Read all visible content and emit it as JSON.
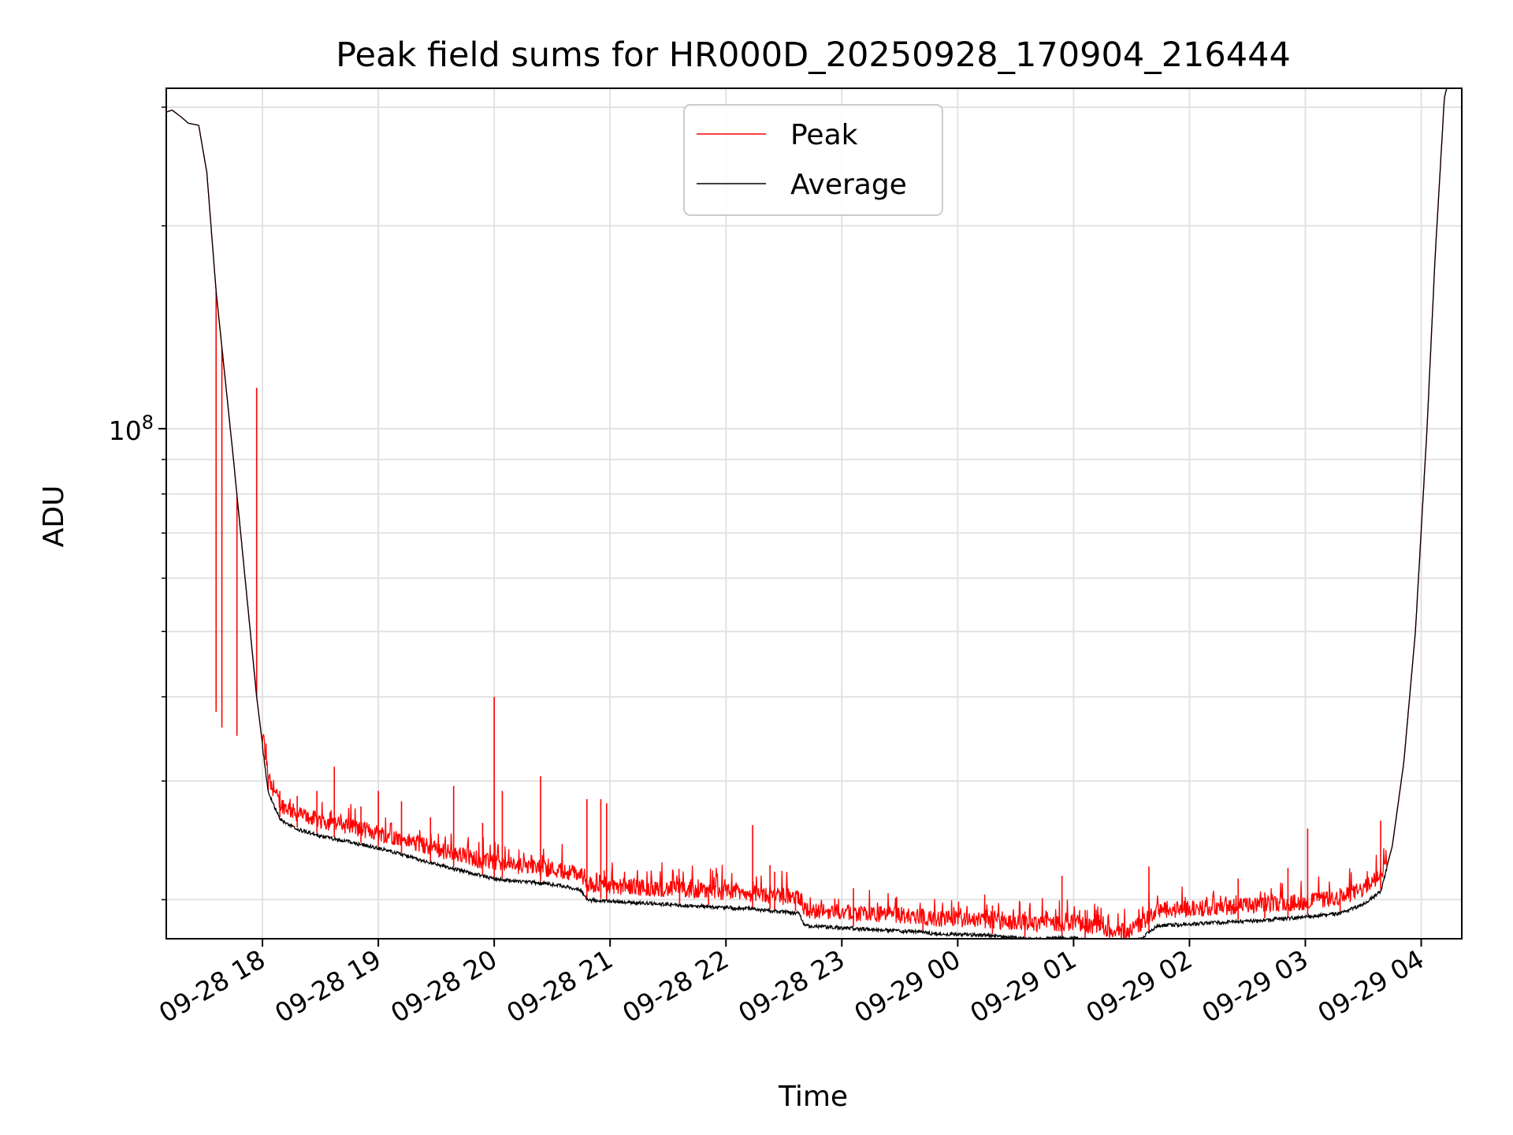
{
  "chart_data": {
    "type": "line",
    "title": "Peak field sums for HR000D_20250928_170904_216444",
    "xlabel": "Time",
    "ylabel": "ADU",
    "yscale": "log",
    "ylim": [
      17500000,
      320000000
    ],
    "xlim_hours_since_2025_09_28_17_00": [
      0.17,
      11.35
    ],
    "grid": true,
    "legend_position": "upper center",
    "x_ticks": [
      {
        "hour": 1,
        "label": "09-28 18"
      },
      {
        "hour": 2,
        "label": "09-28 19"
      },
      {
        "hour": 3,
        "label": "09-28 20"
      },
      {
        "hour": 4,
        "label": "09-28 21"
      },
      {
        "hour": 5,
        "label": "09-28 22"
      },
      {
        "hour": 6,
        "label": "09-28 23"
      },
      {
        "hour": 7,
        "label": "09-29 00"
      },
      {
        "hour": 8,
        "label": "09-29 01"
      },
      {
        "hour": 9,
        "label": "09-29 02"
      },
      {
        "hour": 10,
        "label": "09-29 03"
      },
      {
        "hour": 11,
        "label": "09-29 04"
      }
    ],
    "y_tick_major": {
      "value": 100000000,
      "label_base": "10",
      "label_exp": "8"
    },
    "series": [
      {
        "name": "Peak",
        "color": "#ff0000",
        "baseline_extra_pct": 6,
        "noise_pct": 8,
        "spikes": [
          [
            0.6,
            38000000
          ],
          [
            0.65,
            36000000
          ],
          [
            0.78,
            35000000
          ],
          [
            0.95,
            115000000
          ],
          [
            1.05,
            30000000
          ],
          [
            1.15,
            29000000
          ],
          [
            1.3,
            28500000
          ],
          [
            1.47,
            29000000
          ],
          [
            1.62,
            31500000
          ],
          [
            1.85,
            27500000
          ],
          [
            2.0,
            29000000
          ],
          [
            2.2,
            28000000
          ],
          [
            2.45,
            26500000
          ],
          [
            2.65,
            29500000
          ],
          [
            2.9,
            26000000
          ],
          [
            3.0,
            40000000
          ],
          [
            3.07,
            29000000
          ],
          [
            3.4,
            30500000
          ],
          [
            3.8,
            28200000
          ],
          [
            3.92,
            28200000
          ],
          [
            3.97,
            27800000
          ],
          [
            4.6,
            21500000
          ],
          [
            4.85,
            20500000
          ],
          [
            5.23,
            25800000
          ],
          [
            5.38,
            22500000
          ],
          [
            5.42,
            22000000
          ],
          [
            5.6,
            20500000
          ],
          [
            6.1,
            20800000
          ],
          [
            6.7,
            19400000
          ],
          [
            7.3,
            19600000
          ],
          [
            7.58,
            19200000
          ],
          [
            7.9,
            21700000
          ],
          [
            8.1,
            19300000
          ],
          [
            8.65,
            22400000
          ],
          [
            9.42,
            21500000
          ],
          [
            9.65,
            20500000
          ],
          [
            9.85,
            22300000
          ],
          [
            10.02,
            25500000
          ],
          [
            10.3,
            20800000
          ],
          [
            10.65,
            26200000
          ]
        ]
      },
      {
        "name": "Average",
        "color": "#000000",
        "control_points": [
          [
            0.17,
            295000000
          ],
          [
            0.22,
            297000000
          ],
          [
            0.3,
            290000000
          ],
          [
            0.36,
            284000000
          ],
          [
            0.45,
            282000000
          ],
          [
            0.52,
            240000000
          ],
          [
            0.6,
            160000000
          ],
          [
            0.75,
            90000000
          ],
          [
            0.85,
            60000000
          ],
          [
            0.95,
            40000000
          ],
          [
            1.05,
            29000000
          ],
          [
            1.15,
            26500000
          ],
          [
            1.3,
            25600000
          ],
          [
            1.5,
            25000000
          ],
          [
            1.7,
            24600000
          ],
          [
            2.0,
            24000000
          ],
          [
            2.5,
            22700000
          ],
          [
            3.0,
            21600000
          ],
          [
            3.5,
            21200000
          ],
          [
            3.75,
            20800000
          ],
          [
            3.8,
            20100000
          ],
          [
            4.5,
            19800000
          ],
          [
            5.2,
            19500000
          ],
          [
            5.63,
            19200000
          ],
          [
            5.68,
            18400000
          ],
          [
            6.7,
            18000000
          ],
          [
            6.8,
            17900000
          ],
          [
            7.3,
            17800000
          ],
          [
            7.6,
            17600000
          ],
          [
            8.0,
            17650000
          ],
          [
            8.3,
            17200000
          ],
          [
            8.45,
            17050000
          ],
          [
            8.6,
            17700000
          ],
          [
            8.72,
            18400000
          ],
          [
            9.5,
            18700000
          ],
          [
            10.0,
            18950000
          ],
          [
            10.3,
            19200000
          ],
          [
            10.5,
            19800000
          ],
          [
            10.65,
            20700000
          ],
          [
            10.75,
            24000000
          ],
          [
            10.85,
            32000000
          ],
          [
            10.95,
            50000000
          ],
          [
            11.05,
            100000000
          ],
          [
            11.12,
            180000000
          ],
          [
            11.2,
            310000000
          ],
          [
            11.22,
            320000000
          ]
        ]
      }
    ]
  }
}
